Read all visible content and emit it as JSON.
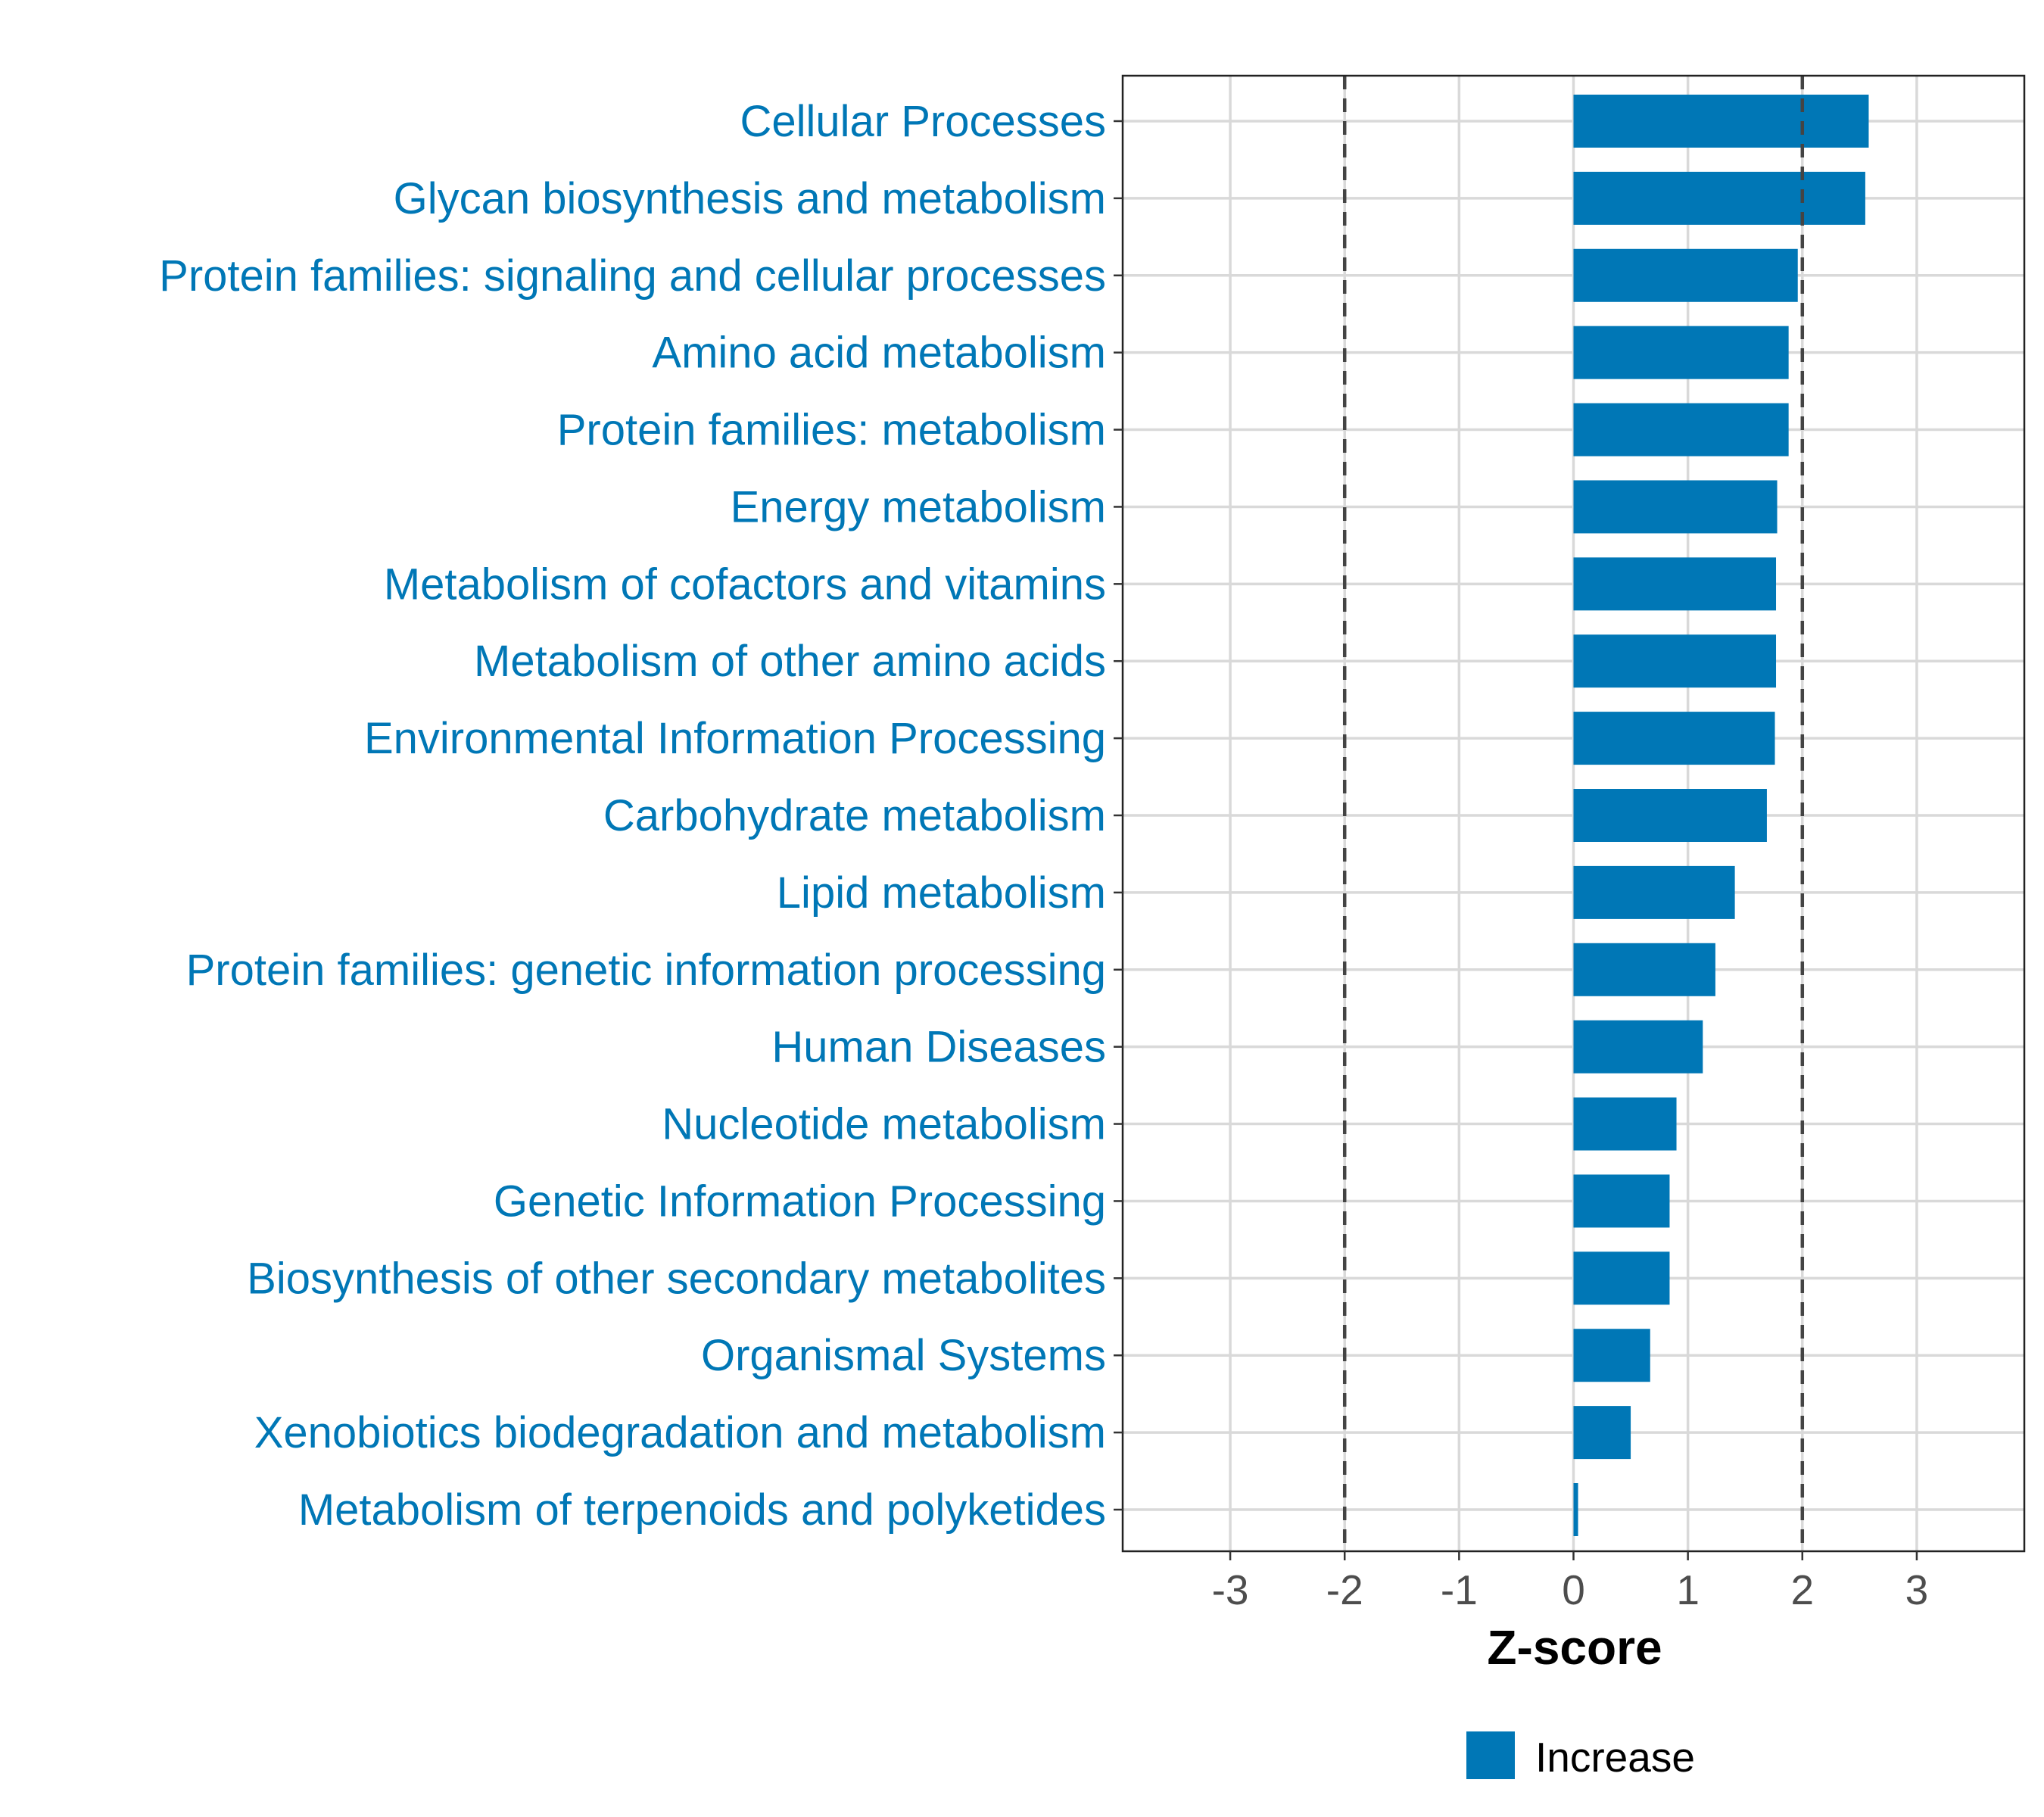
{
  "chart_data": {
    "type": "bar",
    "orientation": "horizontal",
    "title": "",
    "xlabel": "Z-score",
    "ylabel": "",
    "xlim": [
      -3.94,
      3.94
    ],
    "xticks": [
      -3,
      -2,
      -1,
      0,
      1,
      2,
      3
    ],
    "xtick_labels": [
      "-3",
      "-2",
      "-1",
      "0",
      "1",
      "2",
      "3"
    ],
    "reference_lines": [
      -2,
      2
    ],
    "grid": true,
    "categories": [
      "Cellular Processes",
      "Glycan biosynthesis and metabolism",
      "Protein families: signaling and cellular processes",
      "Amino acid metabolism",
      "Protein families: metabolism",
      "Energy metabolism",
      "Metabolism of cofactors and vitamins",
      "Metabolism of other amino acids",
      "Environmental Information Processing",
      "Carbohydrate metabolism",
      "Lipid metabolism",
      "Protein families: genetic information processing",
      "Human Diseases",
      "Nucleotide metabolism",
      "Genetic Information Processing",
      "Biosynthesis of other secondary metabolites",
      "Organismal Systems",
      "Xenobiotics biodegradation and metabolism",
      "Metabolism of terpenoids and polyketides"
    ],
    "values": [
      2.58,
      2.55,
      1.96,
      1.88,
      1.88,
      1.78,
      1.77,
      1.77,
      1.76,
      1.69,
      1.41,
      1.24,
      1.13,
      0.9,
      0.84,
      0.84,
      0.67,
      0.5,
      0.04
    ],
    "legend": {
      "position": "bottom",
      "entries": [
        {
          "label": "Increase",
          "color": "#0077b6"
        }
      ]
    },
    "colors": {
      "bar": "#0077b6",
      "label": "#0077b6",
      "grid": "#d9d9d9",
      "refline": "#444444",
      "tick": "#4d4d4d"
    }
  }
}
